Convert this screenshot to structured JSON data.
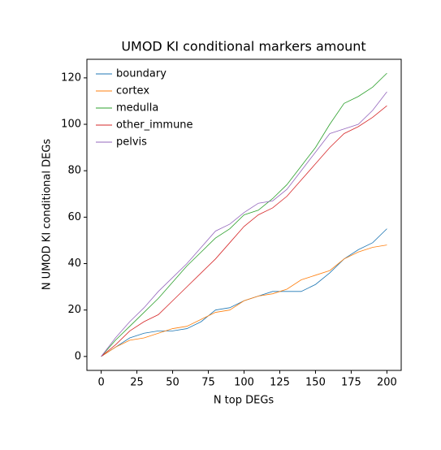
{
  "chart_data": {
    "type": "line",
    "title": "UMOD KI conditional markers amount",
    "x_label": "N top DEGs",
    "y_label": "N UMOD KI conditional DEGs",
    "x": [
      0,
      10,
      20,
      30,
      40,
      50,
      60,
      70,
      80,
      90,
      100,
      110,
      120,
      130,
      140,
      150,
      160,
      170,
      180,
      190,
      200
    ],
    "series": [
      {
        "name": "boundary",
        "color": "#1f77b4",
        "values": [
          0,
          4,
          8,
          10,
          11,
          11,
          12,
          15,
          20,
          21,
          24,
          26,
          28,
          28,
          28,
          31,
          36,
          42,
          46,
          49,
          55
        ]
      },
      {
        "name": "cortex",
        "color": "#ff7f0e",
        "values": [
          0,
          4,
          7,
          8,
          10,
          12,
          13,
          16,
          19,
          20,
          24,
          26,
          27,
          29,
          33,
          35,
          37,
          42,
          45,
          47,
          48
        ]
      },
      {
        "name": "medulla",
        "color": "#2ca02c",
        "values": [
          0,
          7,
          13,
          19,
          25,
          32,
          39,
          45,
          51,
          55,
          61,
          63,
          68,
          74,
          82,
          90,
          100,
          109,
          112,
          116,
          122
        ]
      },
      {
        "name": "other_immune",
        "color": "#d62728",
        "values": [
          0,
          5,
          11,
          15,
          18,
          24,
          30,
          36,
          42,
          49,
          56,
          61,
          64,
          69,
          76,
          83,
          90,
          96,
          99,
          103,
          108
        ]
      },
      {
        "name": "pelvis",
        "color": "#9467bd",
        "values": [
          0,
          8,
          15,
          21,
          28,
          34,
          40,
          47,
          54,
          57,
          62,
          66,
          67,
          72,
          80,
          88,
          96,
          98,
          100,
          106,
          114
        ]
      }
    ],
    "xlim": [
      -10,
      210
    ],
    "ylim": [
      -6,
      128
    ],
    "xticks": [
      0,
      25,
      50,
      75,
      100,
      125,
      150,
      175,
      200
    ],
    "yticks": [
      0,
      20,
      40,
      60,
      80,
      100,
      120
    ],
    "legend": "upper left"
  }
}
